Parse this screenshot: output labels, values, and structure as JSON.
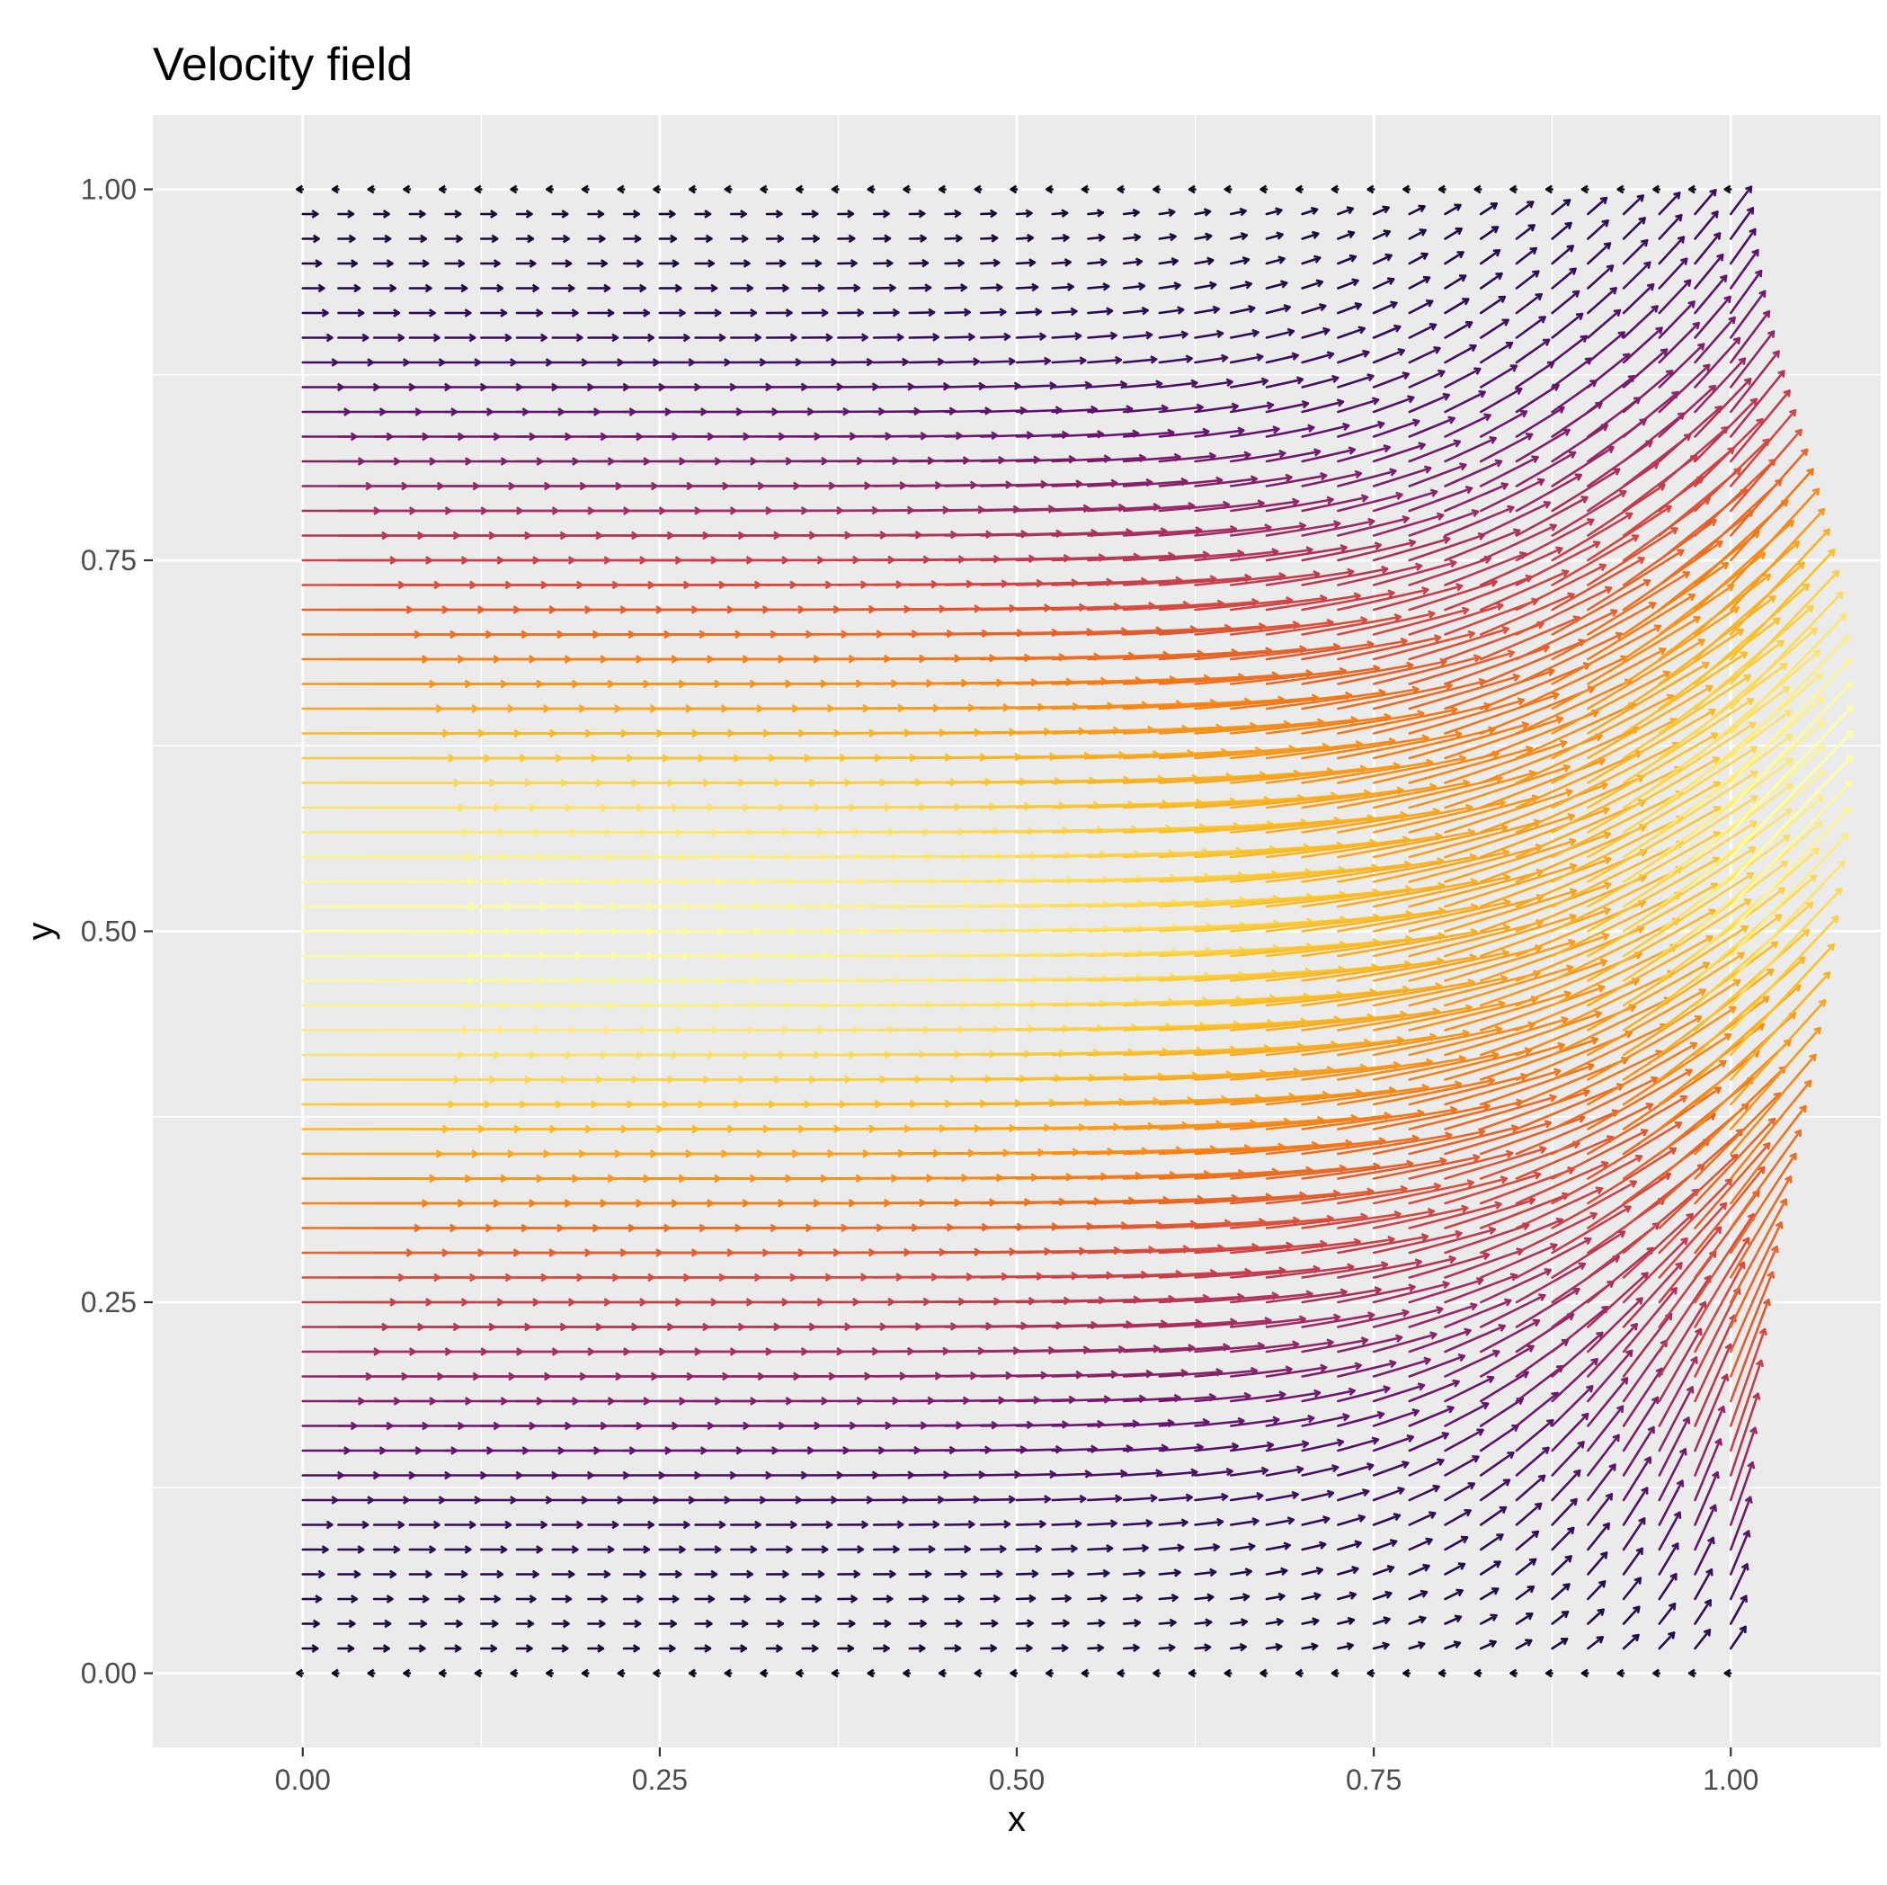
{
  "chart_data": {
    "type": "quiver",
    "title": "Velocity field",
    "xlabel": "x",
    "ylabel": "y",
    "xlim": [
      -0.105,
      1.105
    ],
    "ylim": [
      -0.05,
      1.05
    ],
    "x_ticks": [
      "0.00",
      "0.25",
      "0.50",
      "0.75",
      "1.00"
    ],
    "y_ticks": [
      "0.00",
      "0.25",
      "0.50",
      "0.75",
      "1.00"
    ],
    "grid": true,
    "legend": "none",
    "panel_background": "#ebebeb",
    "grid_color": "#ffffff",
    "colormap": "inferno",
    "grid_points": {
      "nx": 41,
      "ny": 61,
      "x_range": [
        0,
        1
      ],
      "y_range": [
        0,
        1
      ]
    },
    "field": {
      "description_text": "",
      "max_speed_location": [
        0.98,
        0.62
      ],
      "top_row_direction": "left",
      "bottom_row_direction": "left"
    }
  }
}
